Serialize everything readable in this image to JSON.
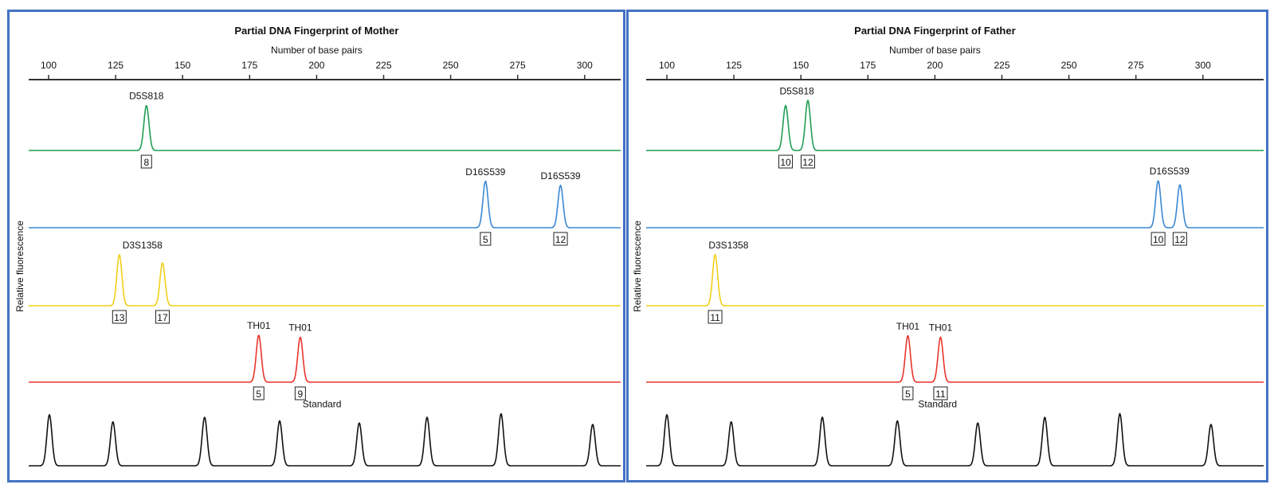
{
  "chart_data": [
    {
      "type": "line",
      "title": "Partial DNA Fingerprint of Mother",
      "xlabel": "Number of base pairs",
      "ylabel": "Relative fluorescence",
      "xticks": [
        100,
        125,
        150,
        175,
        200,
        225,
        250,
        275,
        300
      ],
      "xlim": [
        93,
        315
      ],
      "grid": false,
      "traces": [
        {
          "color": "#1f9e55",
          "loci": [
            {
              "text": "D5S818",
              "bp": 136.5
            }
          ],
          "peaks": [
            {
              "bp": 136.5,
              "height": 0.88,
              "allele": "8"
            }
          ]
        },
        {
          "color": "#3b87d2",
          "loci": [
            {
              "text": "D16S539",
              "bp": 263
            },
            {
              "text": "D16S539",
              "bp": 291
            }
          ],
          "peaks": [
            {
              "bp": 263,
              "height": 0.91,
              "allele": "5"
            },
            {
              "bp": 291,
              "height": 0.83,
              "allele": "12"
            }
          ]
        },
        {
          "color": "#f2cf1a",
          "loci": [
            {
              "text": "D3S1358",
              "bp": 135
            }
          ],
          "peaks": [
            {
              "bp": 126.4,
              "height": 1.0,
              "allele": "13"
            },
            {
              "bp": 142.5,
              "height": 0.84,
              "allele": "17"
            }
          ]
        },
        {
          "color": "#e8352c",
          "loci": [
            {
              "text": "TH01",
              "bp": 178.4
            },
            {
              "text": "TH01",
              "bp": 193.9
            }
          ],
          "peaks": [
            {
              "bp": 178.4,
              "height": 0.92,
              "allele": "5"
            },
            {
              "bp": 193.9,
              "height": 0.88,
              "allele": "9"
            }
          ]
        },
        {
          "color": "#111111",
          "loci": [
            {
              "text": "Standard",
              "bp": 202
            }
          ],
          "peaks": [
            {
              "bp": 100.3,
              "height": 1.0
            },
            {
              "bp": 124,
              "height": 0.86
            },
            {
              "bp": 158.2,
              "height": 0.95
            },
            {
              "bp": 186.2,
              "height": 0.88
            },
            {
              "bp": 215.9,
              "height": 0.84
            },
            {
              "bp": 241.2,
              "height": 0.95
            },
            {
              "bp": 268.8,
              "height": 1.02
            },
            {
              "bp": 303,
              "height": 0.81
            }
          ]
        }
      ]
    },
    {
      "type": "line",
      "title": "Partial DNA Fingerprint of Father",
      "xlabel": "Number of base pairs",
      "ylabel": "Relative fluorescence",
      "xticks": [
        100,
        125,
        150,
        175,
        200,
        225,
        250,
        275,
        300
      ],
      "xlim": [
        93,
        315
      ],
      "grid": false,
      "traces": [
        {
          "color": "#1f9e55",
          "loci": [
            {
              "text": "D5S818",
              "bp": 148.5
            }
          ],
          "peaks": [
            {
              "bp": 144.3,
              "height": 0.88,
              "allele": "10"
            },
            {
              "bp": 152.6,
              "height": 0.98,
              "allele": "12"
            }
          ]
        },
        {
          "color": "#3b87d2",
          "loci": [
            {
              "text": "D16S539",
              "bp": 287.5
            }
          ],
          "peaks": [
            {
              "bp": 283.3,
              "height": 0.92,
              "allele": "10"
            },
            {
              "bp": 291.4,
              "height": 0.84,
              "allele": "12"
            }
          ]
        },
        {
          "color": "#f2cf1a",
          "loci": [
            {
              "text": "D3S1358",
              "bp": 123
            }
          ],
          "peaks": [
            {
              "bp": 118,
              "height": 1.0,
              "allele": "11"
            }
          ]
        },
        {
          "color": "#e8352c",
          "loci": [
            {
              "text": "TH01",
              "bp": 189.9
            },
            {
              "text": "TH01",
              "bp": 202.1
            }
          ],
          "peaks": [
            {
              "bp": 189.9,
              "height": 0.91,
              "allele": "5"
            },
            {
              "bp": 202.1,
              "height": 0.88,
              "allele": "11"
            }
          ]
        },
        {
          "color": "#111111",
          "loci": [
            {
              "text": "Standard",
              "bp": 201
            }
          ],
          "peaks": [
            {
              "bp": 100,
              "height": 1.0
            },
            {
              "bp": 124,
              "height": 0.86
            },
            {
              "bp": 158,
              "height": 0.95
            },
            {
              "bp": 186,
              "height": 0.88
            },
            {
              "bp": 216,
              "height": 0.84
            },
            {
              "bp": 241,
              "height": 0.95
            },
            {
              "bp": 269,
              "height": 1.02
            },
            {
              "bp": 303,
              "height": 0.81
            }
          ]
        }
      ]
    }
  ]
}
